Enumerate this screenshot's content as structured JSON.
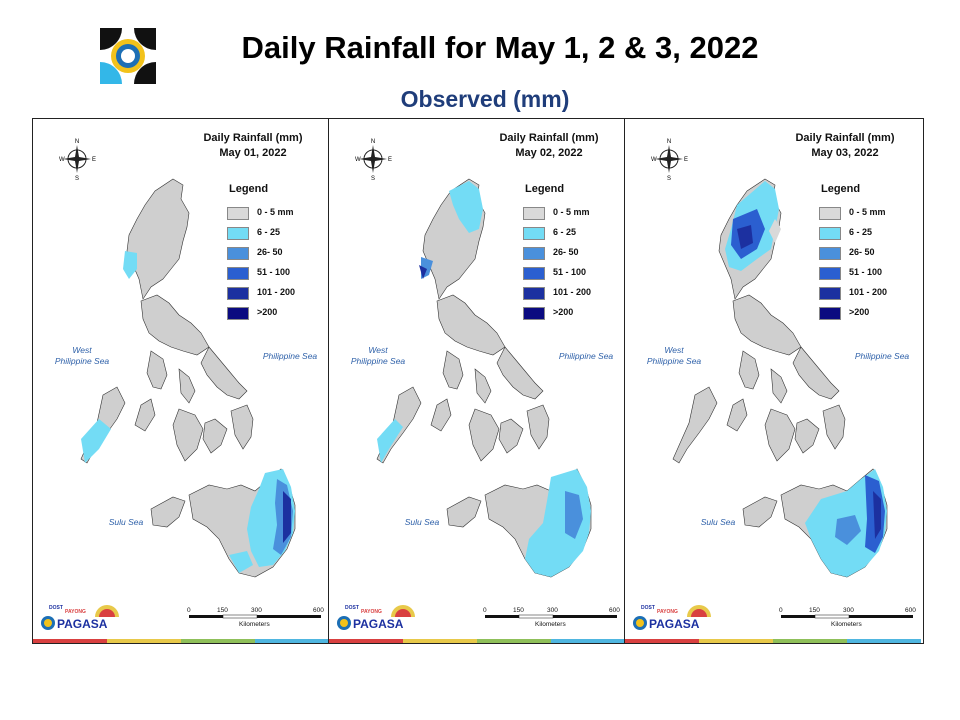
{
  "header": {
    "title": "Daily Rainfall for May 1, 2 & 3, 2022",
    "subtitle": "Observed (mm)"
  },
  "legend": {
    "title": "Legend",
    "classes": [
      {
        "label": "0 - 5 mm",
        "color": "#d9d9d9"
      },
      {
        "label": "6 - 25",
        "color": "#73dcf5"
      },
      {
        "label": "26- 50",
        "color": "#4a90dc"
      },
      {
        "label": "51 - 100",
        "color": "#2b5fd0"
      },
      {
        "label": "101 - 200",
        "color": "#1c30a0"
      },
      {
        "label": ">200",
        "color": "#0a0a80"
      }
    ]
  },
  "panels": [
    {
      "title_line1": "Daily Rainfall (mm)",
      "title_line2": "May 01, 2022"
    },
    {
      "title_line1": "Daily Rainfall (mm)",
      "title_line2": "May 02, 2022"
    },
    {
      "title_line1": "Daily Rainfall (mm)",
      "title_line2": "May 03, 2022"
    }
  ],
  "seas": {
    "west": "West\nPhilippine Sea",
    "east": "Philippine Sea",
    "sulu": "Sulu Sea"
  },
  "scale": {
    "ticks": [
      "0",
      "150",
      "300",
      "600"
    ],
    "unit": "Kilometers"
  },
  "compass": {
    "n": "N",
    "s": "S",
    "e": "E",
    "w": "W"
  },
  "brand": {
    "name": "PAGASA",
    "tag": "DOST",
    "sub": "PAYONG"
  },
  "colors": {
    "bar": [
      "#d94040",
      "#e8c94a",
      "#8fc05a",
      "#4fb6e0"
    ],
    "land": "#cfcfcf",
    "border": "#333333"
  }
}
